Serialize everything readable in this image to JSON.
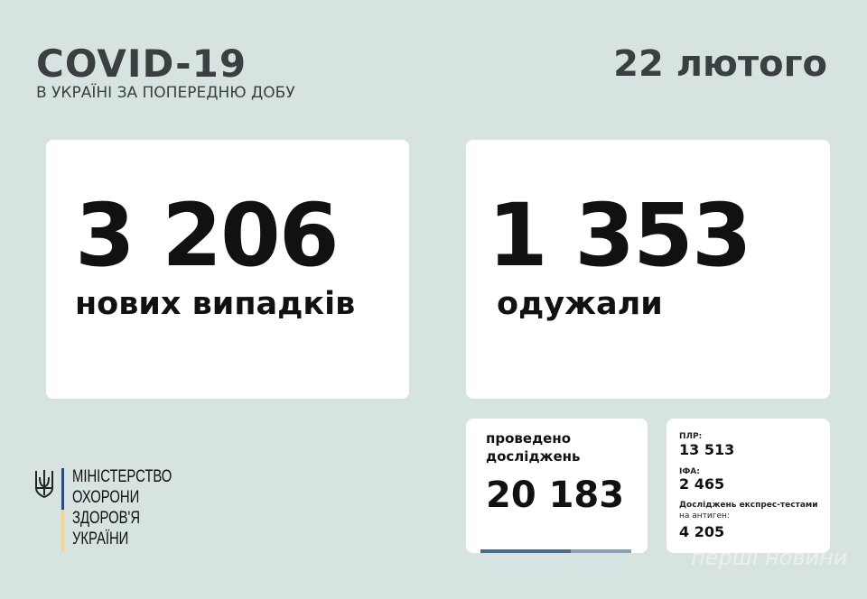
{
  "header": {
    "title": "COVID-19",
    "subtitle": "В УКРАЇНІ ЗА ПОПЕРЕДНЮ ДОБУ",
    "date": "22 лютого"
  },
  "new_cases": {
    "value": "3 206",
    "label": "нових випадків"
  },
  "recovered": {
    "value": "1 353",
    "label": "одужали"
  },
  "tests": {
    "label_line1": "проведено",
    "label_line2": "досліджень",
    "value": "20 183",
    "progress_fraction": 0.6
  },
  "breakdown": {
    "pcr_label": "ПЛР:",
    "pcr_value": "13 513",
    "ifa_label": "ІФА:",
    "ifa_value": "2 465",
    "antigen_label_line1": "Досліджень експрес-тестами",
    "antigen_label_line2": "на антиген:",
    "antigen_value": "4 205"
  },
  "ministry": {
    "line1": "МІНІСТЕРСТВО",
    "line2": "ОХОРОНИ",
    "line3": "ЗДОРОВ'Я",
    "line4": "УКРАЇНИ"
  },
  "watermark": "перші новини",
  "colors": {
    "background": "#d7e3e1",
    "title": "#3a4042",
    "flag_blue": "#2d4a7a",
    "flag_yellow": "#f1d58c"
  }
}
